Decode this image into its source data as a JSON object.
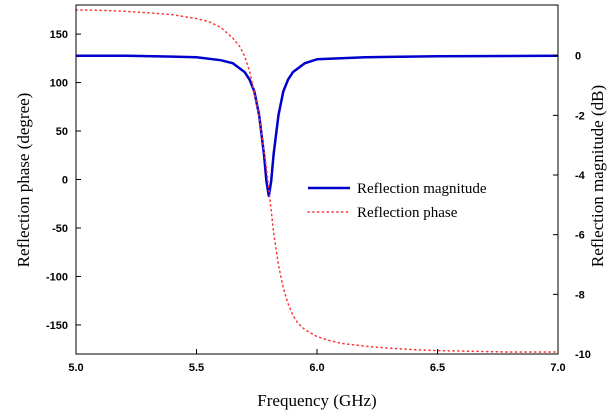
{
  "chart_data": {
    "type": "line",
    "title": "",
    "xlabel": "Frequency (GHz)",
    "ylabel_left": "Reflection phase (degree)",
    "ylabel_right": "Reflection magnitude (dB)",
    "xlim": [
      5.0,
      7.0
    ],
    "ylim_left": [
      -180,
      180
    ],
    "ylim_right": [
      -10,
      1.7
    ],
    "x_ticks": [
      5.0,
      5.5,
      6.0,
      6.5,
      7.0
    ],
    "x_tick_labels": [
      "5.0",
      "5.5",
      "6.0",
      "6.5",
      "7.0"
    ],
    "y_left_ticks": [
      -150,
      -100,
      -50,
      0,
      50,
      100,
      150
    ],
    "y_left_tick_labels": [
      "-150",
      "-100",
      "-50",
      "0",
      "50",
      "100",
      "150"
    ],
    "y_right_ticks": [
      -10,
      -8,
      -6,
      -4,
      -2,
      0
    ],
    "y_right_tick_labels": [
      "-10",
      "-8",
      "-6",
      "-4",
      "-2",
      "0"
    ],
    "grid": false,
    "legend_position": "center-right",
    "series": [
      {
        "name": "Reflection magnitude",
        "axis": "right",
        "style": "solid",
        "color": "#0000cc",
        "x": [
          5.0,
          5.2,
          5.4,
          5.5,
          5.6,
          5.65,
          5.7,
          5.72,
          5.74,
          5.76,
          5.78,
          5.79,
          5.8,
          5.81,
          5.82,
          5.84,
          5.86,
          5.88,
          5.9,
          5.95,
          6.0,
          6.2,
          6.5,
          7.0
        ],
        "y": [
          0.0,
          0.0,
          -0.03,
          -0.05,
          -0.15,
          -0.25,
          -0.55,
          -0.8,
          -1.2,
          -2.0,
          -3.3,
          -4.2,
          -4.7,
          -4.2,
          -3.3,
          -2.0,
          -1.2,
          -0.8,
          -0.55,
          -0.25,
          -0.12,
          -0.05,
          -0.02,
          0.0
        ]
      },
      {
        "name": "Reflection phase",
        "axis": "left",
        "style": "dotted",
        "color": "#ff3333",
        "x": [
          5.0,
          5.1,
          5.2,
          5.3,
          5.4,
          5.5,
          5.55,
          5.6,
          5.65,
          5.68,
          5.7,
          5.72,
          5.74,
          5.76,
          5.78,
          5.79,
          5.8,
          5.81,
          5.82,
          5.84,
          5.86,
          5.88,
          5.9,
          5.92,
          5.95,
          6.0,
          6.05,
          6.1,
          6.2,
          6.3,
          6.4,
          6.5,
          6.6,
          6.8,
          7.0
        ],
        "y": [
          175,
          174.5,
          173.5,
          172,
          170,
          166,
          163,
          157,
          146,
          137,
          127,
          112,
          90,
          65,
          30,
          12,
          -10,
          -32,
          -55,
          -88,
          -112,
          -128,
          -140,
          -148,
          -155,
          -162,
          -166,
          -169,
          -172,
          -174,
          -175.5,
          -176.5,
          -177,
          -178,
          -178
        ]
      }
    ]
  }
}
